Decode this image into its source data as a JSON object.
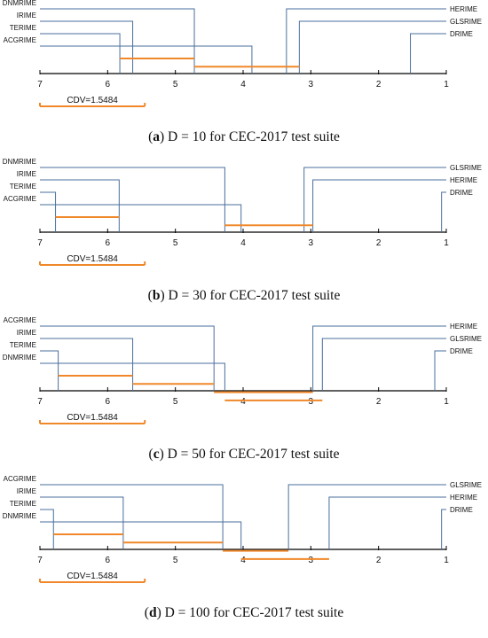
{
  "chart_data": [
    {
      "type": "critical-difference-diagram",
      "caption": {
        "letter": "a",
        "text": "D = 10 for CEC-2017 test suite"
      },
      "axis": {
        "ticks": [
          "7",
          "6",
          "5",
          "4",
          "3",
          "2",
          "1"
        ],
        "range": [
          7,
          1
        ]
      },
      "cd_label": "CDV=1.5484",
      "cd_value": 1.5484,
      "algorithms": [
        {
          "name": "DNMRIME",
          "rank": 4.72
        },
        {
          "name": "IRIME",
          "rank": 5.63
        },
        {
          "name": "TERIME",
          "rank": 5.82
        },
        {
          "name": "ACGRIME",
          "rank": 3.87
        },
        {
          "name": "HERIME",
          "rank": 3.36
        },
        {
          "name": "GLSRIME",
          "rank": 3.17
        },
        {
          "name": "DRIME",
          "rank": 1.53
        }
      ],
      "cliques": [
        [
          5.82,
          4.72
        ],
        [
          4.72,
          3.17
        ]
      ]
    },
    {
      "type": "critical-difference-diagram",
      "caption": {
        "letter": "b",
        "text": "D = 30 for CEC-2017 test suite"
      },
      "axis": {
        "ticks": [
          "7",
          "6",
          "5",
          "4",
          "3",
          "2",
          "1"
        ],
        "range": [
          7,
          1
        ]
      },
      "cd_label": "CDV=1.5484",
      "cd_value": 1.5484,
      "algorithms": [
        {
          "name": "DNMRIME",
          "rank": 4.27
        },
        {
          "name": "IRIME",
          "rank": 5.83
        },
        {
          "name": "TERIME",
          "rank": 6.77
        },
        {
          "name": "ACGRIME",
          "rank": 4.03
        },
        {
          "name": "GLSRIME",
          "rank": 3.1
        },
        {
          "name": "HERIME",
          "rank": 2.97
        },
        {
          "name": "DRIME",
          "rank": 1.07
        }
      ],
      "cliques": [
        [
          6.77,
          5.83
        ],
        [
          4.27,
          2.97
        ]
      ]
    },
    {
      "type": "critical-difference-diagram",
      "caption": {
        "letter": "c",
        "text": "D = 50 for CEC-2017 test suite"
      },
      "axis": {
        "ticks": [
          "7",
          "6",
          "5",
          "4",
          "3",
          "2",
          "1"
        ],
        "range": [
          7,
          1
        ]
      },
      "cd_label": "CDV=1.5484",
      "cd_value": 1.5484,
      "algorithms": [
        {
          "name": "ACGRIME",
          "rank": 4.43
        },
        {
          "name": "IRIME",
          "rank": 5.63
        },
        {
          "name": "TERIME",
          "rank": 6.73
        },
        {
          "name": "DNMRIME",
          "rank": 4.27
        },
        {
          "name": "HERIME",
          "rank": 2.97
        },
        {
          "name": "GLSRIME",
          "rank": 2.83
        },
        {
          "name": "DRIME",
          "rank": 1.17
        }
      ],
      "cliques": [
        [
          6.73,
          5.63
        ],
        [
          5.63,
          4.43
        ],
        [
          4.43,
          2.97
        ],
        [
          4.27,
          2.83
        ]
      ]
    },
    {
      "type": "critical-difference-diagram",
      "caption": {
        "letter": "d",
        "text": "D = 100 for CEC-2017 test suite"
      },
      "axis": {
        "ticks": [
          "7",
          "6",
          "5",
          "4",
          "3",
          "2",
          "1"
        ],
        "range": [
          7,
          1
        ]
      },
      "cd_label": "CDV=1.5484",
      "cd_value": 1.5484,
      "algorithms": [
        {
          "name": "ACGRIME",
          "rank": 4.3
        },
        {
          "name": "IRIME",
          "rank": 5.77
        },
        {
          "name": "TERIME",
          "rank": 6.8
        },
        {
          "name": "DNMRIME",
          "rank": 4.03
        },
        {
          "name": "GLSRIME",
          "rank": 3.33
        },
        {
          "name": "HERIME",
          "rank": 2.73
        },
        {
          "name": "DRIME",
          "rank": 1.07
        }
      ],
      "cliques": [
        [
          6.8,
          5.77
        ],
        [
          5.77,
          4.3
        ],
        [
          4.3,
          3.33
        ],
        [
          4.03,
          2.73
        ]
      ]
    }
  ],
  "colors": {
    "lines": "#4a6f9c",
    "cliques": "#f0882a",
    "axis": "#000000"
  }
}
